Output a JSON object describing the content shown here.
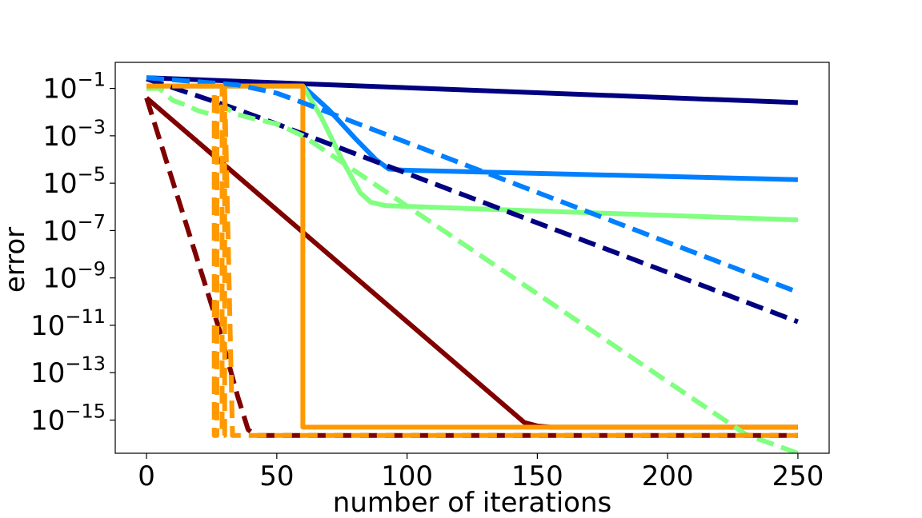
{
  "chart_data": {
    "type": "line",
    "title": "",
    "xlabel": "number of iterations",
    "ylabel": "error",
    "xlim": [
      -12,
      262
    ],
    "ylim_log10": [
      -16.4,
      0.1
    ],
    "y_scale": "log",
    "grid": false,
    "legend": "none",
    "x_ticks": [
      0,
      50,
      100,
      150,
      200,
      250
    ],
    "x_tick_labels": [
      "0",
      "50",
      "100",
      "150",
      "200",
      "250"
    ],
    "y_ticks_log10": [
      -1,
      -3,
      -5,
      -7,
      -9,
      -11,
      -13,
      -15
    ],
    "y_tick_labels": [
      {
        "base": "10",
        "exp": "−1"
      },
      {
        "base": "10",
        "exp": "−3"
      },
      {
        "base": "10",
        "exp": "−5"
      },
      {
        "base": "10",
        "exp": "−7"
      },
      {
        "base": "10",
        "exp": "−9"
      },
      {
        "base": "10",
        "exp": "−11"
      },
      {
        "base": "10",
        "exp": "−13"
      },
      {
        "base": "10",
        "exp": "−15"
      }
    ],
    "series": [
      {
        "color": "#000080",
        "style": "solid",
        "x": [
          0,
          250
        ],
        "log10_y": [
          -0.55,
          -1.6
        ]
      },
      {
        "color": "#0080ff",
        "style": "solid",
        "x": [
          0,
          60,
          70,
          80,
          88,
          93,
          98,
          250
        ],
        "log10_y": [
          -0.9,
          -0.9,
          -1.9,
          -3.1,
          -4.0,
          -4.4,
          -4.45,
          -4.85
        ]
      },
      {
        "color": "#80ff80",
        "style": "solid",
        "x": [
          0,
          60,
          67,
          75,
          82,
          86,
          92,
          250
        ],
        "log10_y": [
          -0.9,
          -0.9,
          -2.2,
          -4.0,
          -5.4,
          -5.8,
          -5.95,
          -6.55
        ]
      },
      {
        "color": "#800000",
        "style": "solid",
        "x": [
          0,
          145,
          150,
          155,
          250
        ],
        "log10_y": [
          -1.4,
          -15.1,
          -15.25,
          -15.3,
          -15.3
        ]
      },
      {
        "color": "#ff9900",
        "style": "solid",
        "x": [
          0,
          60,
          60,
          61,
          250
        ],
        "log10_y": [
          -0.9,
          -0.9,
          -15.3,
          -15.3,
          -15.3
        ]
      },
      {
        "color": "#000080",
        "style": "dashed",
        "x": [
          0,
          30,
          50,
          250
        ],
        "log10_y": [
          -0.6,
          -1.7,
          -2.5,
          -10.85
        ]
      },
      {
        "color": "#0080ff",
        "style": "dashed",
        "x": [
          0,
          35,
          50,
          60,
          250
        ],
        "log10_y": [
          -0.55,
          -0.85,
          -1.2,
          -1.6,
          -9.6
        ]
      },
      {
        "color": "#80ff80",
        "style": "dashed",
        "x": [
          0,
          5,
          10,
          15,
          20,
          25,
          30,
          35,
          40,
          50,
          60,
          230,
          250
        ],
        "log10_y": [
          -1.0,
          -1.0,
          -1.5,
          -1.7,
          -1.95,
          -2.1,
          -1.8,
          -2.1,
          -2.25,
          -2.5,
          -3.0,
          -15.6,
          -16.4
        ]
      },
      {
        "color": "#800000",
        "style": "dashed",
        "x": [
          0,
          28,
          35,
          39,
          42,
          250
        ],
        "log10_y": [
          -1.4,
          -11.2,
          -14.0,
          -15.4,
          -15.65,
          -15.65
        ]
      },
      {
        "color": "#ff9900",
        "style": "dashed",
        "x": [
          0,
          26,
          26,
          27,
          27,
          29,
          29,
          30,
          30,
          33,
          250
        ],
        "log10_y": [
          -0.9,
          -0.9,
          -15.65,
          -15.65,
          -0.9,
          -0.9,
          -15.65,
          -15.65,
          -0.9,
          -15.65,
          -15.65
        ]
      }
    ]
  }
}
